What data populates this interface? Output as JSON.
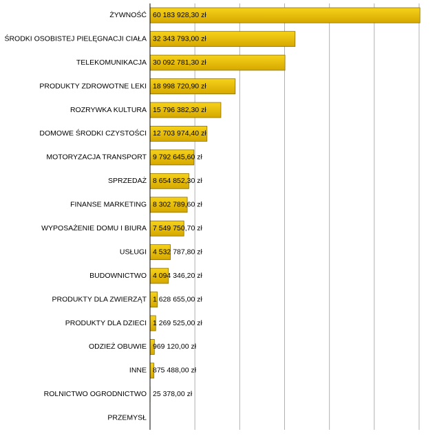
{
  "chart_data": {
    "type": "bar",
    "orientation": "horizontal",
    "categories": [
      "ŻYWNOŚĆ",
      "ŚRODKI OSOBISTEJ PIELĘGNACJI CIAŁA",
      "TELEKOMUNIKACJA",
      "PRODUKTY ZDROWOTNE LEKI",
      "ROZRYWKA KULTURA",
      "DOMOWE ŚRODKI CZYSTOŚCI",
      "MOTORYZACJA TRANSPORT",
      "SPRZEDAŻ",
      "FINANSE MARKETING",
      "WYPOSAŻENIE DOMU I BIURA",
      "USŁUGI",
      "BUDOWNICTWO",
      "PRODUKTY DLA ZWIERZĄT",
      "PRODUKTY DLA DZIECI",
      "ODZIEŻ OBUWIE",
      "INNE",
      "ROLNICTWO OGRODNICTWO",
      "PRZEMYSŁ"
    ],
    "values": [
      60183928.3,
      32343793.0,
      30092781.3,
      18998720.9,
      15796382.3,
      12703974.4,
      9792645.6,
      8654852.3,
      8302789.6,
      7549750.7,
      4532787.8,
      4094346.2,
      1628655.0,
      1269525.0,
      969120.0,
      875488.0,
      25378.0,
      null
    ],
    "value_labels": [
      "60 183 928,30 zł",
      "32 343 793,00 zł",
      "30 092 781,30 zł",
      "18 998 720,90 zł",
      "15 796 382,30 zł",
      "12 703 974,40 zł",
      "9 792 645,60 zł",
      "8 654 852,30 zł",
      "8 302 789,60 zł",
      "7 549 750,70 zł",
      "4 532 787,80 zł",
      "4 094 346,20 zł",
      "1 628 655,00 zł",
      "1 269 525,00 zł",
      "969 120,00 zł",
      "875 488,00 zł",
      "25 378,00 zł",
      null
    ],
    "color": "#e8b800",
    "xlim": [
      0,
      60000000
    ],
    "xticks": [
      0,
      10000000,
      20000000,
      30000000,
      40000000,
      50000000,
      60000000
    ],
    "grid": true
  }
}
